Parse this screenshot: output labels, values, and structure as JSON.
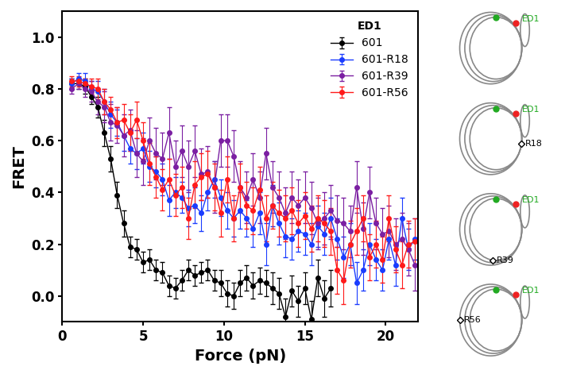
{
  "chart_data": {
    "type": "line",
    "x_label": "Force (pN)",
    "y_label": "FRET",
    "legend_title": "ED1",
    "legend": "upper right",
    "marker": "o",
    "line_style": "solid",
    "xlim": [
      0,
      22
    ],
    "xticks": [
      0,
      5,
      10,
      15,
      20
    ],
    "ylim": [
      -0.1,
      1.1
    ],
    "yticks": [
      {
        "value": 0.0,
        "label": "0.0"
      },
      {
        "value": 0.2,
        "label": "0.2"
      },
      {
        "value": 0.4,
        "label": "0.4"
      },
      {
        "value": 0.6,
        "label": "0.6"
      },
      {
        "value": 0.8,
        "label": "0.8"
      },
      {
        "value": 1.0,
        "label": "1.0"
      }
    ],
    "x": [
      0.6,
      1.0,
      1.4,
      1.8,
      2.2,
      2.6,
      3.0,
      3.4,
      3.8,
      4.2,
      4.6,
      5.0,
      5.4,
      5.8,
      6.2,
      6.6,
      7.0,
      7.4,
      7.8,
      8.2,
      8.6,
      9.0,
      9.4,
      9.8,
      10.2,
      10.6,
      11.0,
      11.4,
      11.8,
      12.2,
      12.6,
      13.0,
      13.4,
      13.8,
      14.2,
      14.6,
      15.0,
      15.4,
      15.8,
      16.2,
      16.6,
      17.0,
      17.4,
      17.8,
      18.2,
      18.6,
      19.0,
      19.4,
      19.8,
      20.2,
      20.6,
      21.0,
      21.4,
      21.8
    ],
    "series": [
      {
        "name": "601",
        "color": "#000000",
        "values": [
          0.82,
          0.82,
          0.81,
          0.77,
          0.73,
          0.63,
          0.53,
          0.39,
          0.28,
          0.19,
          0.18,
          0.13,
          0.14,
          0.1,
          0.09,
          0.04,
          0.03,
          0.06,
          0.1,
          0.08,
          0.09,
          0.1,
          0.06,
          0.05,
          0.01,
          0.0,
          0.05,
          0.07,
          0.04,
          0.06,
          0.05,
          0.03,
          0.01,
          -0.08,
          0.02,
          -0.02,
          0.03,
          -0.09,
          0.07,
          -0.01,
          0.03,
          null,
          null,
          null,
          null,
          null,
          null,
          null,
          null,
          null,
          null,
          null,
          null,
          null
        ],
        "errors": [
          0.02,
          0.02,
          0.03,
          0.03,
          0.04,
          0.05,
          0.05,
          0.05,
          0.05,
          0.04,
          0.04,
          0.04,
          0.04,
          0.04,
          0.04,
          0.04,
          0.04,
          0.04,
          0.04,
          0.04,
          0.04,
          0.04,
          0.04,
          0.05,
          0.05,
          0.05,
          0.05,
          0.05,
          0.05,
          0.05,
          0.05,
          0.06,
          0.06,
          0.07,
          0.06,
          0.06,
          0.06,
          0.07,
          0.07,
          0.07,
          0.07,
          null,
          null,
          null,
          null,
          null,
          null,
          null,
          null,
          null,
          null,
          null,
          null,
          null
        ]
      },
      {
        "name": "601-R18",
        "color": "#1a3cff",
        "values": [
          0.82,
          0.84,
          0.83,
          0.8,
          0.79,
          0.75,
          0.7,
          0.67,
          0.62,
          0.57,
          0.55,
          0.57,
          0.5,
          0.48,
          0.45,
          0.37,
          0.4,
          0.38,
          0.34,
          0.35,
          0.32,
          0.4,
          0.45,
          0.38,
          0.33,
          0.3,
          0.33,
          0.3,
          0.26,
          0.32,
          0.2,
          0.35,
          0.28,
          0.23,
          0.22,
          0.25,
          0.24,
          0.2,
          0.27,
          0.24,
          0.3,
          0.22,
          0.15,
          0.2,
          0.05,
          0.1,
          0.2,
          0.14,
          0.1,
          0.22,
          0.12,
          0.3,
          0.18,
          0.22
        ],
        "errors": [
          0.02,
          0.02,
          0.03,
          0.03,
          0.04,
          0.05,
          0.05,
          0.05,
          0.06,
          0.06,
          0.06,
          0.06,
          0.06,
          0.06,
          0.06,
          0.06,
          0.06,
          0.06,
          0.07,
          0.07,
          0.07,
          0.07,
          0.07,
          0.07,
          0.07,
          0.07,
          0.07,
          0.07,
          0.07,
          0.08,
          0.08,
          0.08,
          0.08,
          0.08,
          0.08,
          0.08,
          0.08,
          0.08,
          0.08,
          0.08,
          0.08,
          0.08,
          0.08,
          0.08,
          0.08,
          0.08,
          0.08,
          0.08,
          0.08,
          0.08,
          0.08,
          0.08,
          0.08,
          0.08
        ]
      },
      {
        "name": "601-R39",
        "color": "#7b1fa2",
        "values": [
          0.8,
          0.82,
          0.8,
          0.79,
          0.75,
          0.73,
          0.67,
          0.66,
          0.62,
          0.64,
          0.55,
          0.52,
          0.6,
          0.55,
          0.53,
          0.63,
          0.5,
          0.56,
          0.5,
          0.56,
          0.47,
          0.48,
          0.42,
          0.6,
          0.6,
          0.54,
          0.42,
          0.38,
          0.45,
          0.38,
          0.55,
          0.42,
          0.38,
          0.32,
          0.38,
          0.35,
          0.38,
          0.34,
          0.28,
          0.3,
          0.33,
          0.29,
          0.28,
          0.25,
          0.42,
          0.26,
          0.4,
          0.28,
          0.24,
          0.25,
          0.2,
          0.22,
          0.18,
          0.12
        ],
        "errors": [
          0.02,
          0.02,
          0.03,
          0.04,
          0.05,
          0.06,
          0.07,
          0.07,
          0.08,
          0.08,
          0.09,
          0.09,
          0.09,
          0.1,
          0.1,
          0.1,
          0.1,
          0.1,
          0.1,
          0.1,
          0.1,
          0.1,
          0.1,
          0.1,
          0.1,
          0.1,
          0.1,
          0.1,
          0.1,
          0.1,
          0.1,
          0.1,
          0.1,
          0.1,
          0.1,
          0.1,
          0.1,
          0.1,
          0.1,
          0.1,
          0.1,
          0.1,
          0.1,
          0.1,
          0.1,
          0.1,
          0.1,
          0.1,
          0.1,
          0.1,
          0.1,
          0.1,
          0.1,
          0.1
        ]
      },
      {
        "name": "601-R56",
        "color": "#ff1a1a",
        "values": [
          0.83,
          0.83,
          0.82,
          0.81,
          0.8,
          0.75,
          0.72,
          0.67,
          0.68,
          0.63,
          0.68,
          0.6,
          0.51,
          0.46,
          0.41,
          0.45,
          0.39,
          0.42,
          0.3,
          0.43,
          0.46,
          0.47,
          0.42,
          0.32,
          0.45,
          0.3,
          0.42,
          0.35,
          0.33,
          0.41,
          0.3,
          0.35,
          0.32,
          0.3,
          0.33,
          0.28,
          0.31,
          0.26,
          0.3,
          0.28,
          0.25,
          0.1,
          0.06,
          0.2,
          0.25,
          0.3,
          0.15,
          0.2,
          0.14,
          0.3,
          0.18,
          0.12,
          0.2,
          0.21
        ],
        "errors": [
          0.02,
          0.02,
          0.02,
          0.03,
          0.04,
          0.05,
          0.05,
          0.06,
          0.06,
          0.07,
          0.07,
          0.07,
          0.08,
          0.08,
          0.08,
          0.08,
          0.08,
          0.08,
          0.08,
          0.09,
          0.09,
          0.09,
          0.09,
          0.09,
          0.09,
          0.09,
          0.09,
          0.09,
          0.09,
          0.09,
          0.09,
          0.09,
          0.09,
          0.09,
          0.09,
          0.09,
          0.09,
          0.09,
          0.09,
          0.09,
          0.09,
          0.09,
          0.09,
          0.09,
          0.09,
          0.09,
          0.09,
          0.09,
          0.09,
          0.09,
          0.09,
          0.09,
          0.09,
          0.09
        ]
      }
    ]
  },
  "diagrams": [
    {
      "labels": [
        "ED1"
      ]
    },
    {
      "labels": [
        "ED1",
        "R18"
      ]
    },
    {
      "labels": [
        "ED1",
        "R39"
      ]
    },
    {
      "labels": [
        "ED1",
        "R56"
      ]
    }
  ]
}
